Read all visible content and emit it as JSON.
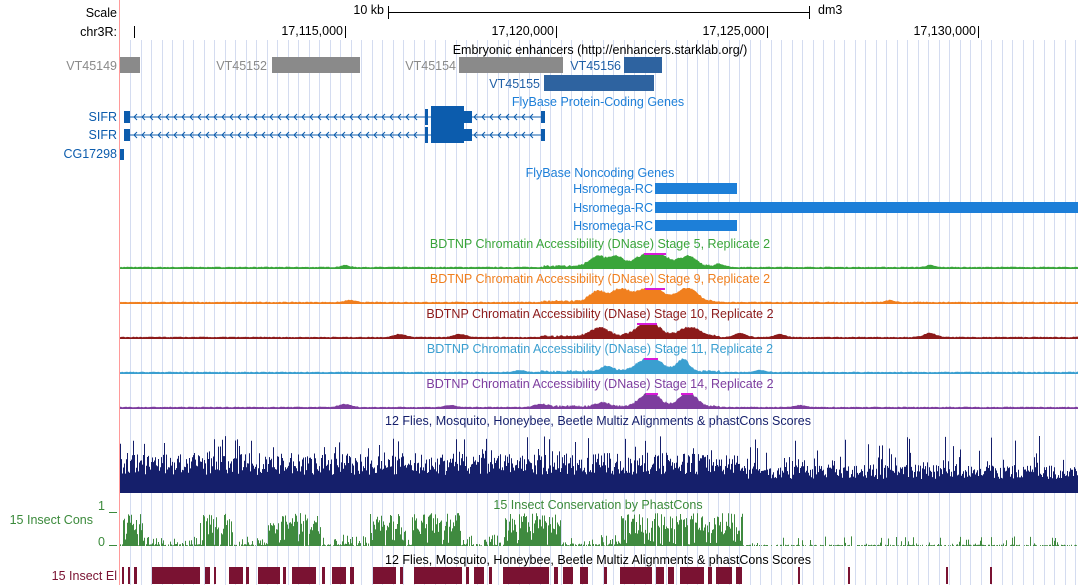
{
  "ruler": {
    "scale_label": "Scale",
    "chrom_label": "chr3R:",
    "scalebar_label": "10 kb",
    "assembly": "dm3",
    "ticks": [
      "17,115,000",
      "17,120,000",
      "17,125,000",
      "17,130,000"
    ]
  },
  "enhancers": {
    "title": "Embryonic enhancers (http://enhancers.starklab.org/)",
    "items": [
      "VT45149",
      "VT45152",
      "VT45154",
      "VT45156",
      "VT45155"
    ]
  },
  "genes": {
    "title": "FlyBase Protein-Coding Genes",
    "items": [
      "SIFR",
      "SIFR",
      "CG17298"
    ]
  },
  "noncoding": {
    "title": "FlyBase Noncoding Genes",
    "items": [
      "Hsromega-RC",
      "Hsromega-RC",
      "Hsromega-RC"
    ]
  },
  "dnase": [
    {
      "title": "BDTNP Chromatin Accessibility (DNase) Stage 5, Replicate 2",
      "color": "#3aa53a"
    },
    {
      "title": "BDTNP Chromatin Accessibility (DNase) Stage 9, Replicate 2",
      "color": "#f07f1e"
    },
    {
      "title": "BDTNP Chromatin Accessibility (DNase) Stage 10, Replicate 2",
      "color": "#8c1a1a"
    },
    {
      "title": "BDTNP Chromatin Accessibility (DNase) Stage 11, Replicate 2",
      "color": "#3a9fd0"
    },
    {
      "title": "BDTNP Chromatin Accessibility (DNase) Stage 14, Replicate 2",
      "color": "#7d3d9e"
    }
  ],
  "conservation": {
    "multiz_title": "12 Flies, Mosquito, Honeybee, Beetle Multiz Alignments & phastCons Scores",
    "phastcons_title": "15 Insect Conservation by PhastCons",
    "cons_label": "15 Insect Cons",
    "max_label": "1",
    "min_label": "0",
    "elements_title": "12 Flies, Mosquito, Honeybee, Beetle Multiz Alignments & phastCons Scores",
    "elements_label": "15 Insect El"
  },
  "colors": {
    "blue": "#1f5fa6",
    "gene_blue": "#0c5cad",
    "noncoding_blue": "#1d7fd8",
    "gray": "#8a8a8a",
    "navy": "#151f6b",
    "cons_green": "#3f8a3f",
    "cons_label_green": "#3b8a3b",
    "el_maroon": "#7a1232",
    "grid": "#cfd8ee",
    "left_border": "#ff9a9a"
  }
}
